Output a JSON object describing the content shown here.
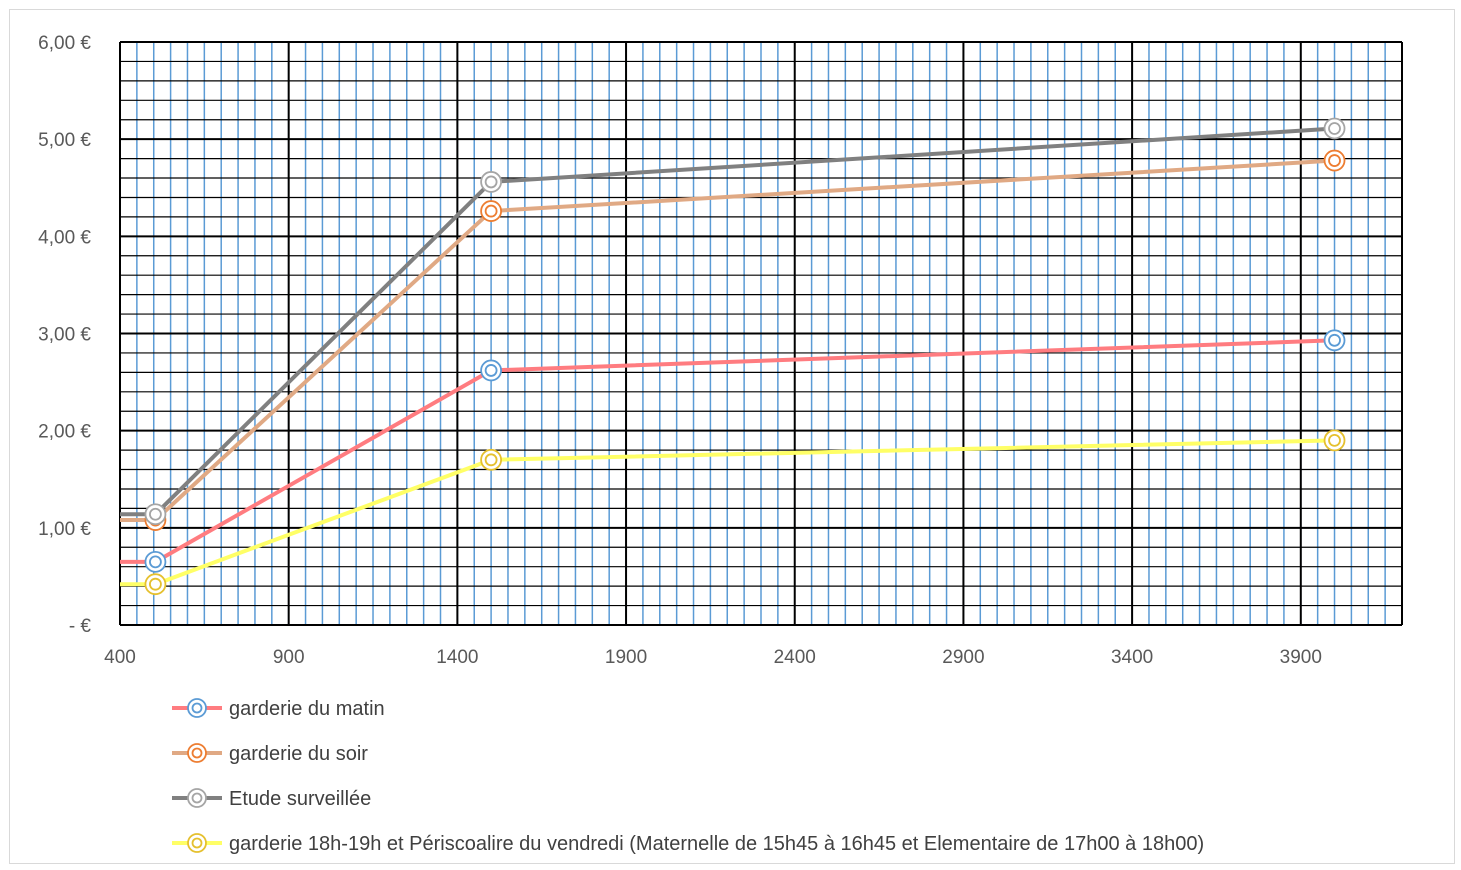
{
  "chart_data": {
    "type": "line",
    "title": "",
    "xlabel": "",
    "ylabel": "",
    "xlim": [
      400,
      4200
    ],
    "ylim": [
      0,
      6
    ],
    "x_ticks": [
      400,
      900,
      1400,
      1900,
      2400,
      2900,
      3400,
      3900
    ],
    "x_tick_labels": [
      "400",
      "900",
      "1400",
      "1900",
      "2400",
      "2900",
      "3400",
      "3900"
    ],
    "y_ticks": [
      0,
      1,
      2,
      3,
      4,
      5,
      6
    ],
    "y_tick_labels": [
      "-  €",
      "1,00 €",
      "2,00 €",
      "3,00 €",
      "4,00 €",
      "5,00 €",
      "6,00 €"
    ],
    "grid": true,
    "legend_position": "bottom",
    "series": [
      {
        "name": "garderie du matin",
        "color": "#ff7c80",
        "marker_color": "#5b9bd5",
        "points": [
          [
            400,
            0.65
          ],
          [
            505,
            0.65
          ],
          [
            1500,
            2.62
          ],
          [
            4000,
            2.93
          ]
        ]
      },
      {
        "name": "garderie du soir",
        "color": "#e0a984",
        "marker_color": "#ed7d31",
        "points": [
          [
            400,
            1.08
          ],
          [
            505,
            1.08
          ],
          [
            1500,
            4.26
          ],
          [
            4000,
            4.78
          ]
        ]
      },
      {
        "name": "Etude surveillée",
        "color": "#808080",
        "marker_color": "#a5a5a5",
        "points": [
          [
            400,
            1.14
          ],
          [
            505,
            1.14
          ],
          [
            1500,
            4.56
          ],
          [
            4000,
            5.11
          ]
        ]
      },
      {
        "name": "garderie 18h-19h et Périscoalire du vendredi (Maternelle de 15h45 à 16h45 et Elementaire de 17h00 à 18h00)",
        "color": "#ffff66",
        "marker_color": "#e5c02e",
        "points": [
          [
            400,
            0.42
          ],
          [
            505,
            0.42
          ],
          [
            1500,
            1.7
          ],
          [
            4000,
            1.9
          ]
        ]
      }
    ]
  }
}
